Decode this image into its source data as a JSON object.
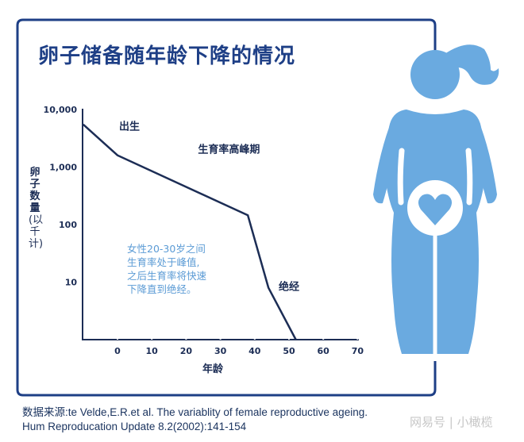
{
  "title": "卵子储备随年龄下降的情况",
  "colors": {
    "navy": "#1e3f86",
    "line": "#1c2d55",
    "figure": "#6aaae0",
    "note": "#5b9bd5"
  },
  "chart_data": {
    "type": "line",
    "title": "卵子储备随年龄下降的情况",
    "xlabel": "年龄",
    "ylabel": "卵子数量（以千计）",
    "ylabel_chars": [
      "卵",
      "子",
      "数",
      "量",
      "(以",
      "千",
      "计)"
    ],
    "y_scale": "log",
    "ylim": [
      1,
      10000
    ],
    "xlim": [
      -10,
      70
    ],
    "x_ticks": [
      "0",
      "10",
      "20",
      "30",
      "40",
      "50",
      "60",
      "70"
    ],
    "y_ticks": [
      "10,000",
      "1,000",
      "100",
      "10"
    ],
    "y_tick_values": [
      10000,
      1000,
      100,
      10
    ],
    "x_tick_values": [
      0,
      10,
      20,
      30,
      40,
      50,
      60,
      70
    ],
    "series": [
      {
        "x": [
          -10,
          0,
          38,
          44,
          52
        ],
        "y": [
          5500,
          1600,
          145,
          8,
          1
        ]
      }
    ],
    "annotations": [
      {
        "text": "出生",
        "x": 0,
        "y": 1600
      },
      {
        "text": "生育率高峰期",
        "x": 20,
        "y": 500
      },
      {
        "text": "绝经",
        "x": 47,
        "y": 8
      }
    ],
    "note_lines": [
      "女性20-30岁之间",
      "生育率处于峰值,",
      "之后生育率将快速",
      "下降直到绝经。"
    ],
    "grid": false
  },
  "source_lines": [
    "数据来源:te Velde,E.R.et al. The variablity of female reproductive ageing.",
    "Hum Reproducation Update 8.2(2002):141-154"
  ],
  "watermark": "网易号 | 小橄榄",
  "figure_icon": "woman-with-heart-womb-icon"
}
